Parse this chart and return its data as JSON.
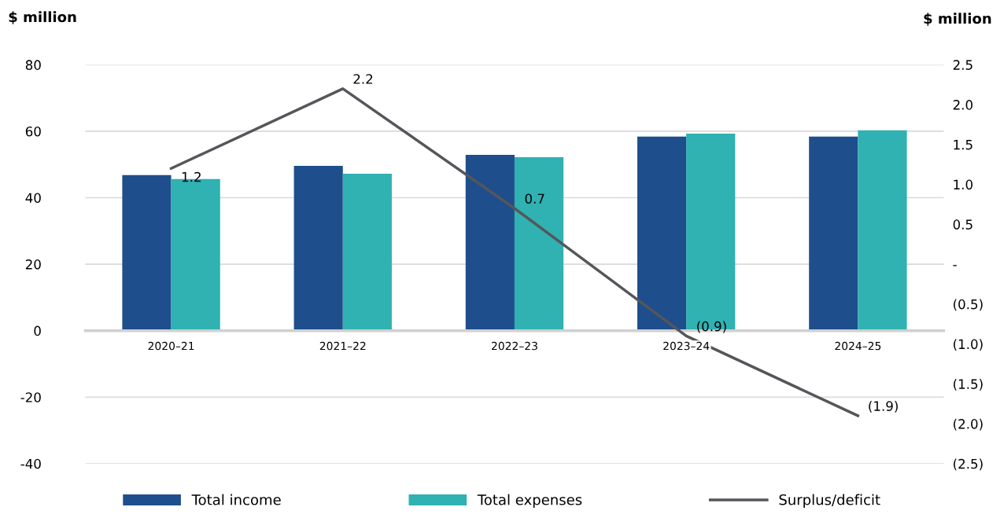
{
  "chart_data": {
    "type": "bar",
    "ylabel": "$ million",
    "y2label": "$ million",
    "categories": [
      "2020–21",
      "2021–22",
      "2022–23",
      "2023–24",
      "2024–25"
    ],
    "series": [
      {
        "name": "Total income",
        "color": "#1f4e8c",
        "values": [
          46.8,
          49.6,
          52.9,
          58.4,
          58.4
        ]
      },
      {
        "name": "Total expenses",
        "color": "#30b1b2",
        "values": [
          45.6,
          47.2,
          52.2,
          59.3,
          60.3
        ]
      },
      {
        "name": "Surplus/deficit",
        "type": "line",
        "axis": "y2",
        "color": "#55565a",
        "marker": "none",
        "values": [
          1.2,
          2.2,
          0.7,
          -0.9,
          -1.9
        ],
        "value_labels": [
          "1.2",
          "2.2",
          "0.7",
          "(0.9)",
          "(1.9)"
        ]
      }
    ],
    "ylim": [
      -40,
      80
    ],
    "yticks": [
      -40,
      -20,
      0,
      20,
      40,
      60,
      80
    ],
    "y2lim": [
      -2.5,
      2.5
    ],
    "y2ticks": [
      {
        "value": -2.5,
        "label": "(2.5)"
      },
      {
        "value": -2.0,
        "label": "(2.0)"
      },
      {
        "value": -1.5,
        "label": "(1.5)"
      },
      {
        "value": -1.0,
        "label": "(1.0)"
      },
      {
        "value": -0.5,
        "label": "(0.5)"
      },
      {
        "value": 0,
        "label": "-"
      },
      {
        "value": 0.5,
        "label": "0.5"
      },
      {
        "value": 1.0,
        "label": "1.0"
      },
      {
        "value": 1.5,
        "label": "1.5"
      },
      {
        "value": 2.0,
        "label": "2.0"
      },
      {
        "value": 2.5,
        "label": "2.5"
      }
    ],
    "grid": "y",
    "legend": "bottom"
  }
}
